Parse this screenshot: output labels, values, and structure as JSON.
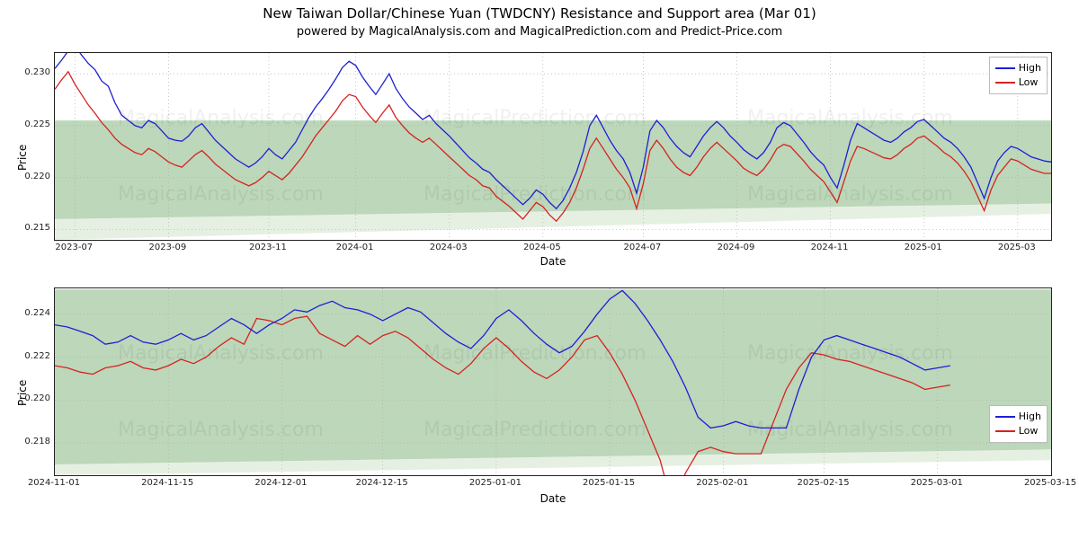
{
  "title": "New Taiwan Dollar/Chinese Yuan (TWDCNY) Resistance and Support area (Mar 01)",
  "subtitle": "powered by MagicalAnalysis.com and MagicalPrediction.com and Predict-Price.com",
  "ylabel": "Price",
  "xlabel": "Date",
  "colors": {
    "high": "#1f1fd6",
    "low": "#d62222",
    "band_dark": "#a5c9a1",
    "band_light": "#cfe3cb",
    "grid": "#b0b0b0"
  },
  "legend": {
    "high": "High",
    "low": "Low"
  },
  "watermarks": [
    "MagicalAnalysis.com",
    "MagicalPrediction.com"
  ],
  "chart1": {
    "type": "line-with-bands",
    "ylim": [
      0.214,
      0.232
    ],
    "yticks": [
      0.215,
      0.22,
      0.225,
      0.23
    ],
    "yticklabels": [
      "0.215",
      "0.220",
      "0.225",
      "0.230"
    ],
    "xticks_idx": [
      3,
      17,
      32,
      45,
      59,
      73,
      88,
      102,
      116,
      130,
      144
    ],
    "xticklabels": [
      "2023-07",
      "2023-09",
      "2023-11",
      "2024-01",
      "2024-03",
      "2024-05",
      "2024-07",
      "2024-09",
      "2024-11",
      "2025-01",
      "2025-03"
    ],
    "n": 150,
    "band_dark_top": 0.2255,
    "band_dark_bot_start": 0.216,
    "band_dark_bot_end": 0.2175,
    "band_light_bot_start": 0.214,
    "band_light_bot_end": 0.2165,
    "high": [
      0.2305,
      0.2313,
      0.2322,
      0.2327,
      0.2318,
      0.231,
      0.2304,
      0.2293,
      0.2288,
      0.2272,
      0.226,
      0.2255,
      0.225,
      0.2248,
      0.2255,
      0.2252,
      0.2245,
      0.2238,
      0.2236,
      0.2235,
      0.224,
      0.2248,
      0.2252,
      0.2244,
      0.2236,
      0.223,
      0.2224,
      0.2218,
      0.2214,
      0.221,
      0.2214,
      0.222,
      0.2228,
      0.2222,
      0.2218,
      0.2226,
      0.2234,
      0.2246,
      0.2258,
      0.2268,
      0.2276,
      0.2285,
      0.2295,
      0.2306,
      0.2312,
      0.2308,
      0.2297,
      0.2288,
      0.228,
      0.229,
      0.23,
      0.2286,
      0.2276,
      0.2268,
      0.2262,
      0.2256,
      0.226,
      0.2252,
      0.2246,
      0.224,
      0.2233,
      0.2226,
      0.2219,
      0.2214,
      0.2208,
      0.2205,
      0.2198,
      0.2192,
      0.2186,
      0.218,
      0.2174,
      0.218,
      0.2188,
      0.2184,
      0.2176,
      0.217,
      0.2178,
      0.219,
      0.2205,
      0.2225,
      0.225,
      0.226,
      0.2248,
      0.2236,
      0.2226,
      0.2218,
      0.2205,
      0.2185,
      0.221,
      0.2245,
      0.2255,
      0.2248,
      0.2238,
      0.223,
      0.2224,
      0.222,
      0.223,
      0.224,
      0.2248,
      0.2254,
      0.2248,
      0.224,
      0.2234,
      0.2227,
      0.2222,
      0.2218,
      0.2224,
      0.2234,
      0.2248,
      0.2253,
      0.225,
      0.2242,
      0.2234,
      0.2225,
      0.2218,
      0.2212,
      0.22,
      0.219,
      0.2212,
      0.2236,
      0.2252,
      0.2248,
      0.2244,
      0.224,
      0.2236,
      0.2234,
      0.2238,
      0.2244,
      0.2248,
      0.2254,
      0.2256,
      0.225,
      0.2244,
      0.2238,
      0.2234,
      0.2228,
      0.222,
      0.221,
      0.2195,
      0.218,
      0.22,
      0.2216,
      0.2224,
      0.223,
      0.2228,
      0.2224,
      0.222,
      0.2218,
      0.2216,
      0.2215
    ],
    "low": [
      0.2285,
      0.2294,
      0.2302,
      0.229,
      0.228,
      0.227,
      0.2262,
      0.2253,
      0.2246,
      0.2238,
      0.2232,
      0.2228,
      0.2224,
      0.2222,
      0.2228,
      0.2225,
      0.222,
      0.2215,
      0.2212,
      0.221,
      0.2216,
      0.2222,
      0.2226,
      0.222,
      0.2213,
      0.2208,
      0.2203,
      0.2198,
      0.2195,
      0.2192,
      0.2195,
      0.22,
      0.2206,
      0.2202,
      0.2198,
      0.2204,
      0.2212,
      0.222,
      0.223,
      0.224,
      0.2248,
      0.2256,
      0.2264,
      0.2274,
      0.228,
      0.2278,
      0.2268,
      0.226,
      0.2253,
      0.2262,
      0.227,
      0.2258,
      0.225,
      0.2243,
      0.2238,
      0.2234,
      0.2238,
      0.2232,
      0.2226,
      0.222,
      0.2214,
      0.2208,
      0.2202,
      0.2198,
      0.2192,
      0.219,
      0.2182,
      0.2177,
      0.2172,
      0.2166,
      0.216,
      0.2168,
      0.2176,
      0.2172,
      0.2164,
      0.2158,
      0.2166,
      0.2176,
      0.219,
      0.2208,
      0.2228,
      0.2238,
      0.2228,
      0.2218,
      0.2208,
      0.22,
      0.219,
      0.217,
      0.2194,
      0.2226,
      0.2236,
      0.2228,
      0.2218,
      0.221,
      0.2205,
      0.2202,
      0.221,
      0.222,
      0.2228,
      0.2234,
      0.2228,
      0.2222,
      0.2216,
      0.2209,
      0.2205,
      0.2202,
      0.2208,
      0.2217,
      0.2228,
      0.2232,
      0.223,
      0.2223,
      0.2216,
      0.2208,
      0.2202,
      0.2196,
      0.2186,
      0.2176,
      0.2196,
      0.2216,
      0.223,
      0.2228,
      0.2225,
      0.2222,
      0.2219,
      0.2218,
      0.2222,
      0.2228,
      0.2232,
      0.2238,
      0.224,
      0.2235,
      0.223,
      0.2224,
      0.222,
      0.2214,
      0.2206,
      0.2196,
      0.2182,
      0.2168,
      0.2188,
      0.2202,
      0.221,
      0.2218,
      0.2216,
      0.2212,
      0.2208,
      0.2206,
      0.2204,
      0.2204
    ]
  },
  "chart2": {
    "type": "line-with-bands",
    "ylim": [
      0.2165,
      0.2252
    ],
    "yticks": [
      0.218,
      0.22,
      0.222,
      0.224
    ],
    "yticklabels": [
      "0.218",
      "0.220",
      "0.222",
      "0.224"
    ],
    "xticks_idx": [
      0,
      9,
      18,
      26,
      35,
      44,
      53,
      61,
      70,
      79
    ],
    "xticklabels": [
      "2024-11-01",
      "2024-11-15",
      "2024-12-01",
      "2024-12-15",
      "2025-01-01",
      "2025-01-15",
      "2025-02-01",
      "2025-02-15",
      "2025-03-01",
      "2025-03-15"
    ],
    "n": 80,
    "band_dark_top": 0.22515,
    "band_dark_bot_start": 0.217,
    "band_dark_bot_end": 0.2177,
    "band_light_bot_start": 0.2165,
    "band_light_bot_end": 0.2172,
    "high": [
      0.2235,
      0.2234,
      0.2232,
      0.223,
      0.2226,
      0.2227,
      0.223,
      0.2227,
      0.2226,
      0.2228,
      0.2231,
      0.2228,
      0.223,
      0.2234,
      0.2238,
      0.2235,
      0.2231,
      0.2235,
      0.2238,
      0.2242,
      0.2241,
      0.2244,
      0.2246,
      0.2243,
      0.2242,
      0.224,
      0.2237,
      0.224,
      0.2243,
      0.2241,
      0.2236,
      0.2231,
      0.2227,
      0.2224,
      0.223,
      0.2238,
      0.2242,
      0.2237,
      0.2231,
      0.2226,
      0.2222,
      0.2225,
      0.2232,
      0.224,
      0.2247,
      0.2251,
      0.2245,
      0.2237,
      0.2228,
      0.2218,
      0.2206,
      0.2192,
      0.2187,
      0.2188,
      0.219,
      0.2188,
      0.2187,
      0.2187,
      0.2187,
      0.2205,
      0.222,
      0.2228,
      0.223,
      0.2228,
      0.2226,
      0.2224,
      0.2222,
      0.222,
      0.2217,
      0.2214,
      0.2215,
      0.2216
    ],
    "low": [
      0.2216,
      0.2215,
      0.2213,
      0.2212,
      0.2215,
      0.2216,
      0.2218,
      0.2215,
      0.2214,
      0.2216,
      0.2219,
      0.2217,
      0.222,
      0.2225,
      0.2229,
      0.2226,
      0.2238,
      0.2237,
      0.2235,
      0.2238,
      0.2239,
      0.2231,
      0.2228,
      0.2225,
      0.223,
      0.2226,
      0.223,
      0.2232,
      0.2229,
      0.2224,
      0.2219,
      0.2215,
      0.2212,
      0.2217,
      0.2224,
      0.2229,
      0.2224,
      0.2218,
      0.2213,
      0.221,
      0.2214,
      0.222,
      0.2228,
      0.223,
      0.2222,
      0.2212,
      0.22,
      0.2186,
      0.2172,
      0.215,
      0.2166,
      0.2176,
      0.2178,
      0.2176,
      0.2175,
      0.2175,
      0.2175,
      0.219,
      0.2205,
      0.2215,
      0.2222,
      0.2221,
      0.2219,
      0.2218,
      0.2216,
      0.2214,
      0.2212,
      0.221,
      0.2208,
      0.2205,
      0.2206,
      0.2207
    ]
  }
}
